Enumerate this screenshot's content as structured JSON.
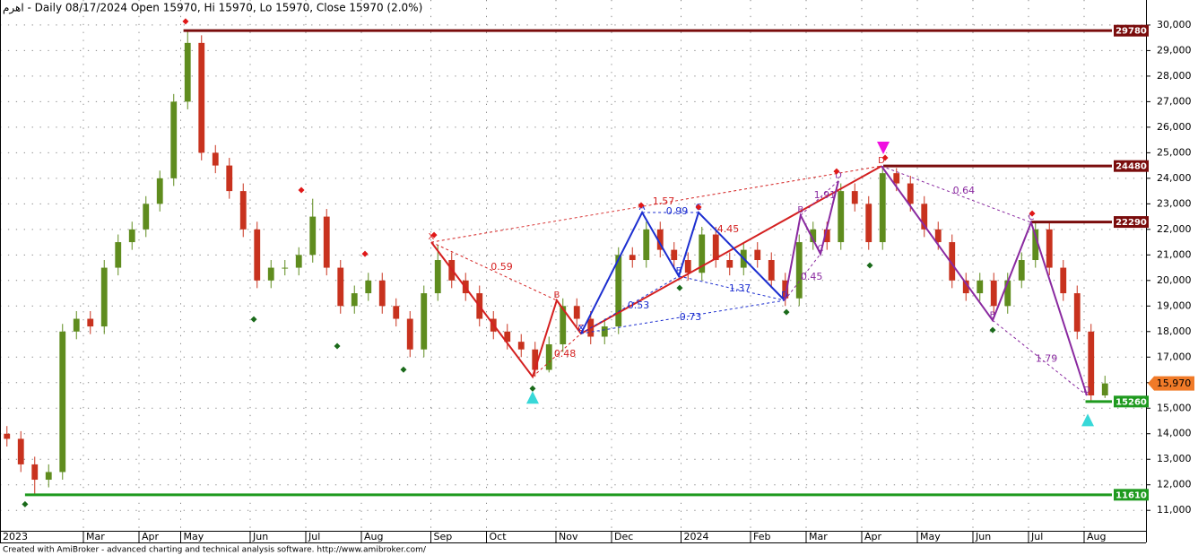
{
  "chart_data": {
    "type": "candlestick",
    "title": "اهرم - Daily 08/17/2024 Open 15970, Hi 15970, Lo 15970, Close 15970 (2.0%)",
    "footer": "Created with AmiBroker - advanced charting and technical analysis software. http://www.amibroker.com/",
    "categories": [
      "2023",
      null,
      null,
      null,
      null,
      null,
      "Mar",
      null,
      null,
      null,
      "Apr",
      null,
      null,
      "May",
      null,
      null,
      null,
      null,
      "Jun",
      null,
      null,
      null,
      "Jul",
      null,
      null,
      null,
      "Aug",
      null,
      null,
      null,
      null,
      "Sep",
      null,
      null,
      null,
      "Oct",
      null,
      null,
      null,
      null,
      "Nov",
      null,
      null,
      null,
      "Dec",
      null,
      null,
      null,
      null,
      "2024",
      null,
      null,
      null,
      null,
      "Feb",
      null,
      null,
      null,
      "Mar",
      null,
      null,
      null,
      "Apr",
      null,
      null,
      null,
      "May",
      null,
      null,
      null,
      "Jun",
      null,
      null,
      null,
      "Jul",
      null,
      null,
      null,
      "Aug",
      null
    ],
    "open": [
      14000,
      13800,
      12800,
      12200,
      12500,
      18000,
      18500,
      18200,
      20500,
      21500,
      22000,
      23000,
      24000,
      27000,
      29300,
      25000,
      24500,
      23500,
      22000,
      20000,
      20500,
      20500,
      21000,
      22500,
      20500,
      19000,
      19500,
      20000,
      19000,
      18500,
      17300,
      19500,
      20800,
      20000,
      19500,
      18500,
      18000,
      17600,
      17300,
      16500,
      17500,
      19000,
      18500,
      17800,
      18200,
      21000,
      20800,
      22000,
      21200,
      20800,
      20300,
      21800,
      20800,
      20500,
      21200,
      20800,
      20000,
      19300,
      21500,
      22000,
      21500,
      23500,
      23000,
      21500,
      24200,
      23800,
      23000,
      22000,
      21500,
      20000,
      19500,
      20000,
      19000,
      20000,
      20800,
      22000,
      20500,
      19500,
      18000,
      15500
    ],
    "high": [
      14300,
      14100,
      13100,
      12800,
      18300,
      18800,
      18800,
      20800,
      21800,
      22300,
      23300,
      24300,
      27300,
      29780,
      29600,
      25300,
      24800,
      23800,
      22300,
      20800,
      20800,
      21300,
      23200,
      22800,
      20800,
      19800,
      20300,
      20300,
      19300,
      18800,
      19800,
      21400,
      21100,
      20300,
      19800,
      18800,
      18300,
      17900,
      17600,
      17800,
      19300,
      19300,
      18800,
      18500,
      21300,
      21300,
      22300,
      22300,
      21500,
      21100,
      22100,
      22100,
      21100,
      21500,
      21500,
      21100,
      20300,
      21800,
      22300,
      22300,
      23800,
      23800,
      23300,
      24480,
      24400,
      24100,
      23300,
      22300,
      21800,
      20300,
      20300,
      20300,
      20300,
      21100,
      22290,
      22300,
      20800,
      19800,
      18300,
      16270
    ],
    "low": [
      13500,
      12500,
      11610,
      11900,
      12200,
      17700,
      17900,
      17900,
      20200,
      21200,
      21700,
      22700,
      23700,
      26700,
      24700,
      24200,
      23200,
      21700,
      19700,
      19700,
      20200,
      20200,
      20700,
      20200,
      18700,
      18700,
      19200,
      18700,
      18200,
      17000,
      17000,
      19200,
      19700,
      19200,
      18200,
      17700,
      17300,
      17000,
      16230,
      16400,
      17200,
      18200,
      17500,
      17500,
      17900,
      20500,
      20500,
      20900,
      20500,
      20000,
      20000,
      20500,
      20200,
      20200,
      20500,
      19700,
      19000,
      19000,
      21200,
      21200,
      21200,
      22700,
      21200,
      21200,
      23500,
      22700,
      21700,
      21200,
      19700,
      19200,
      19200,
      18700,
      18700,
      19700,
      20500,
      20200,
      19200,
      17700,
      15260,
      15400
    ],
    "close": [
      13800,
      12800,
      12200,
      12500,
      18000,
      18500,
      18200,
      20500,
      21500,
      22000,
      23000,
      24000,
      27000,
      29300,
      25000,
      24500,
      23500,
      22000,
      20000,
      20500,
      20500,
      21000,
      22500,
      20500,
      19000,
      19500,
      20000,
      19000,
      18500,
      17300,
      19500,
      20800,
      20000,
      19500,
      18500,
      18000,
      17600,
      17300,
      16500,
      17500,
      19000,
      18500,
      17800,
      18200,
      21000,
      20800,
      22000,
      21200,
      20800,
      20300,
      21800,
      20800,
      20500,
      21200,
      20800,
      20000,
      19300,
      21500,
      22000,
      21500,
      23500,
      23000,
      21500,
      24200,
      23800,
      23000,
      22000,
      21500,
      20000,
      19500,
      20000,
      19000,
      20000,
      20800,
      22000,
      20500,
      19500,
      18000,
      15500,
      15970
    ],
    "up_color": "#5f8c1e",
    "down_color": "#c8321e",
    "ylim": [
      10200,
      30980
    ],
    "yticks": [
      {
        "value": 11000,
        "label": "11,000"
      },
      {
        "value": 12000,
        "label": "12,000"
      },
      {
        "value": 13000,
        "label": "13,000"
      },
      {
        "value": 14000,
        "label": "14,000"
      },
      {
        "value": 15000,
        "label": "15,000"
      },
      {
        "value": 16000,
        "label": "16,000"
      },
      {
        "value": 17000,
        "label": "17,000"
      },
      {
        "value": 18000,
        "label": "18,000"
      },
      {
        "value": 19000,
        "label": "19,000"
      },
      {
        "value": 20000,
        "label": "20,000"
      },
      {
        "value": 21000,
        "label": "21,000"
      },
      {
        "value": 22000,
        "label": "22,000"
      },
      {
        "value": 23000,
        "label": "23,000"
      },
      {
        "value": 24000,
        "label": "24,000"
      },
      {
        "value": 25000,
        "label": "25,000"
      },
      {
        "value": 26000,
        "label": "26,000"
      },
      {
        "value": 27000,
        "label": "27,000"
      },
      {
        "value": 28000,
        "label": "28,000"
      },
      {
        "value": 29000,
        "label": "29,000"
      },
      {
        "value": 30000,
        "label": "30,000"
      }
    ],
    "grid": true,
    "last_price": {
      "value": 15970,
      "label": "15,970"
    },
    "last_color": "#f07a28",
    "levels": [
      {
        "value": 29780,
        "start": 12.7,
        "color": "#7a0c0c"
      },
      {
        "value": 24480,
        "start": 63.05,
        "color": "#7a0c0c"
      },
      {
        "value": 22290,
        "start": 73.7,
        "color": "#7a0c0c"
      },
      {
        "value": 15260,
        "start": 77.6,
        "color": "#1f9a1f"
      },
      {
        "value": 11610,
        "start": 1.3,
        "color": "#1f9a1f"
      }
    ],
    "patterns": [
      {
        "color": "#d42020",
        "points": [
          [
            30.53,
            21500
          ],
          [
            37.82,
            16230
          ],
          [
            39.56,
            19220
          ],
          [
            41.3,
            17920
          ],
          [
            62.92,
            24480
          ]
        ],
        "labels": [
          "X",
          null,
          "B",
          "C",
          "D"
        ],
        "dotted": [
          [
            0,
            2
          ],
          [
            1,
            3
          ],
          [
            0,
            4
          ]
        ],
        "ratios": [
          {
            "text": "0.59",
            "x": 35.6,
            "y": 20520
          },
          {
            "text": "0.48",
            "x": 40.15,
            "y": 17110
          },
          {
            "text": "1.57",
            "x": 47.24,
            "y": 23080
          },
          {
            "text": "4.45",
            "x": 51.89,
            "y": 21990
          }
        ]
      },
      {
        "color": "#1c2ed0",
        "points": [
          [
            41.3,
            17920
          ],
          [
            45.7,
            22660
          ],
          [
            48.34,
            20170
          ],
          [
            49.76,
            22660
          ],
          [
            55.95,
            19220
          ]
        ],
        "labels": [
          "X",
          "A",
          "B",
          "C",
          "D"
        ],
        "dotted": [
          [
            0,
            2
          ],
          [
            1,
            3
          ],
          [
            2,
            4
          ],
          [
            0,
            4
          ]
        ],
        "ratios": [
          {
            "text": "0.53",
            "x": 45.44,
            "y": 19010
          },
          {
            "text": "0.99",
            "x": 48.21,
            "y": 22690
          },
          {
            "text": "1.37",
            "x": 52.73,
            "y": 19670
          },
          {
            "text": "0.73",
            "x": 49.18,
            "y": 18550
          }
        ]
      },
      {
        "color": "#8a2aa0",
        "points": [
          [
            55.95,
            19220
          ],
          [
            57.1,
            22550
          ],
          [
            58.53,
            21040
          ],
          [
            59.82,
            23900
          ]
        ],
        "labels": [
          null,
          "B",
          "C",
          "D"
        ],
        "dotted": [
          [
            0,
            2
          ],
          [
            1,
            3
          ]
        ],
        "ratios": [
          {
            "text": "1.91",
            "x": 58.85,
            "y": 23330
          },
          {
            "text": "0.45",
            "x": 57.9,
            "y": 20130
          }
        ]
      },
      {
        "color": "#8a2aa0",
        "points": [
          [
            62.92,
            24480
          ],
          [
            70.92,
            18440
          ],
          [
            73.69,
            22270
          ],
          [
            77.7,
            15500
          ]
        ],
        "labels": [
          null,
          "B",
          "C",
          "D"
        ],
        "dotted": [
          [
            0,
            2
          ],
          [
            1,
            3
          ]
        ],
        "ratios": [
          {
            "text": "0.64",
            "x": 68.85,
            "y": 23500
          },
          {
            "text": "1.79",
            "x": 74.79,
            "y": 16930
          }
        ]
      }
    ],
    "pivot_highs": [
      [
        12.85,
        30140
      ],
      [
        21.18,
        23540
      ],
      [
        25.76,
        21040
      ],
      [
        30.73,
        21780
      ],
      [
        45.63,
        22940
      ],
      [
        49.76,
        22870
      ],
      [
        59.69,
        24270
      ],
      [
        63.18,
        24800
      ],
      [
        73.76,
        22620
      ]
    ],
    "pivot_lows": [
      [
        1.3,
        11240
      ],
      [
        17.76,
        18480
      ],
      [
        23.76,
        17430
      ],
      [
        28.53,
        16510
      ],
      [
        37.82,
        15770
      ],
      [
        48.4,
        19710
      ],
      [
        56.08,
        18760
      ],
      [
        62.08,
        20590
      ],
      [
        70.92,
        18060
      ]
    ],
    "high_color": "#e01818",
    "low_color": "#1a6a1a",
    "signals": [
      {
        "x": 37.82,
        "y": 15420,
        "dir": "up",
        "color": "#38d8d8"
      },
      {
        "x": 63.05,
        "y": 25190,
        "dir": "down",
        "color": "#f010e0"
      },
      {
        "x": 77.76,
        "y": 14540,
        "dir": "up",
        "color": "#38d8d8"
      }
    ]
  }
}
